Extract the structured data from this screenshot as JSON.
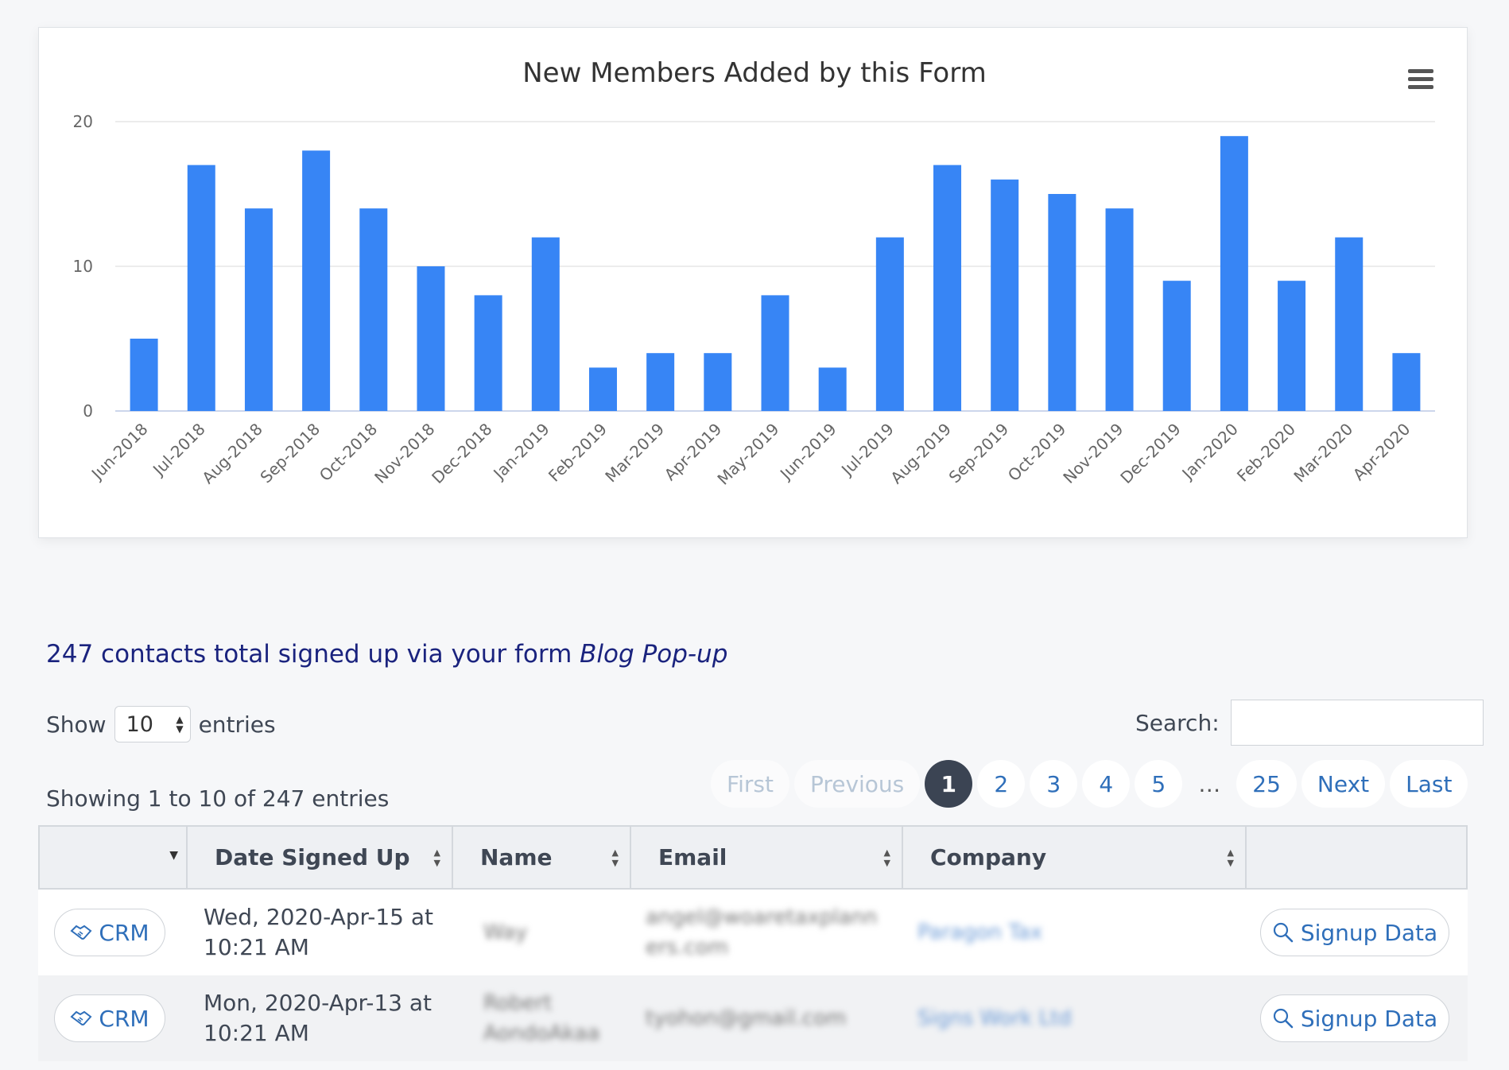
{
  "chart_data": {
    "type": "bar",
    "title": "New Members Added by this Form",
    "xlabel": "",
    "ylabel": "",
    "ylim": [
      0,
      20
    ],
    "yticks": [
      0,
      10,
      20
    ],
    "categories": [
      "Jun-2018",
      "Jul-2018",
      "Aug-2018",
      "Sep-2018",
      "Oct-2018",
      "Nov-2018",
      "Dec-2018",
      "Jan-2019",
      "Feb-2019",
      "Mar-2019",
      "Apr-2019",
      "May-2019",
      "Jun-2019",
      "Jul-2019",
      "Aug-2019",
      "Sep-2019",
      "Oct-2019",
      "Nov-2019",
      "Dec-2019",
      "Jan-2020",
      "Feb-2020",
      "Mar-2020",
      "Apr-2020"
    ],
    "values": [
      5,
      17,
      14,
      18,
      14,
      10,
      8,
      12,
      3,
      4,
      4,
      8,
      3,
      12,
      17,
      16,
      15,
      14,
      9,
      19,
      9,
      12,
      4
    ],
    "bar_color": "#3785f5",
    "grid": true,
    "legend": "none"
  },
  "chart_menu_icon": "hamburger-menu-icon",
  "summary": {
    "prefix": "247 contacts total signed up via your form ",
    "form_name": "Blog Pop-up"
  },
  "length": {
    "show_label": "Show",
    "value": "10",
    "entries_label": "entries"
  },
  "search": {
    "label": "Search:",
    "value": ""
  },
  "info": "Showing 1 to 10 of 247 entries",
  "pagination": {
    "first": "First",
    "previous": "Previous",
    "pages": [
      "1",
      "2",
      "3",
      "4",
      "5"
    ],
    "current": "1",
    "ellipsis": "…",
    "last_page": "25",
    "next": "Next",
    "last": "Last"
  },
  "table": {
    "columns": [
      "",
      "Date Signed Up",
      "Name",
      "Email",
      "Company",
      ""
    ],
    "rows": [
      {
        "crm_label": "CRM",
        "date_line1": "Wed, 2020-Apr-15 at",
        "date_line2": "10:21 AM",
        "name_line1": "Way",
        "name_line2": "",
        "email_line1": "angel@woaretaxplann",
        "email_line2": "ers.com",
        "company": "Paragon Tax",
        "action_label": "Signup Data"
      },
      {
        "crm_label": "CRM",
        "date_line1": "Mon, 2020-Apr-13 at",
        "date_line2": "10:21 AM",
        "name_line1": "Robert",
        "name_line2": "AondoAkaa",
        "email_line1": "tyohon@gmail.com",
        "email_line2": "",
        "company": "Signs Work Ltd",
        "action_label": "Signup Data"
      }
    ]
  },
  "colors": {
    "accent": "#2f6fba",
    "summary_text": "#1a237e",
    "current_page_bg": "#3b4453"
  }
}
